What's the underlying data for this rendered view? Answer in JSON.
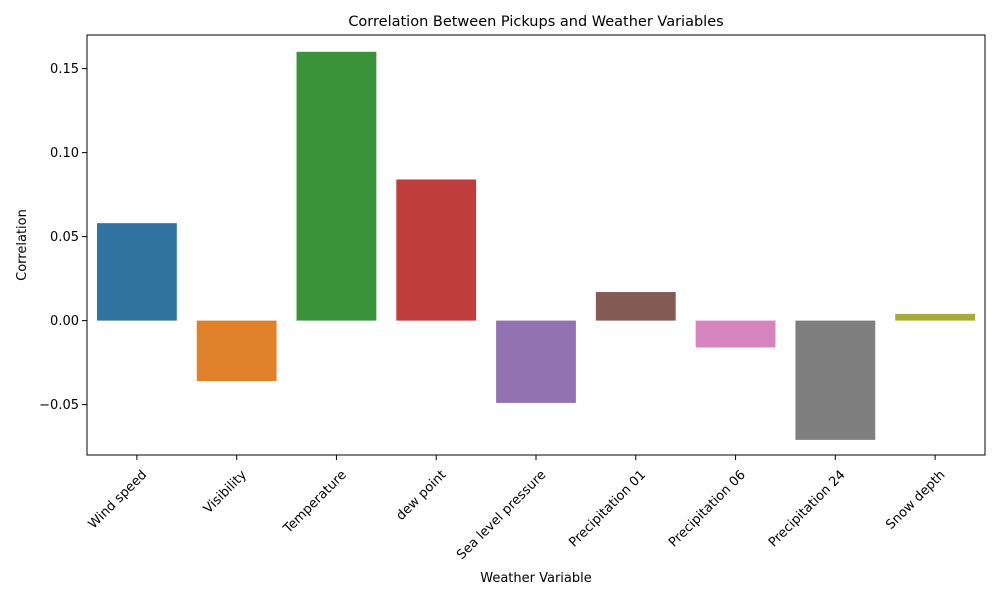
{
  "chart_data": {
    "type": "bar",
    "title": "Correlation Between Pickups and Weather Variables",
    "xlabel": "Weather Variable",
    "ylabel": "Correlation",
    "categories": [
      "Wind speed",
      "Visibility",
      "Temperature",
      "dew point",
      "Sea level pressure",
      "Precipitation 01",
      "Precipitation 06",
      "Precipitation 24",
      "Snow depth"
    ],
    "values": [
      0.058,
      -0.036,
      0.16,
      0.084,
      -0.049,
      0.017,
      -0.016,
      -0.071,
      0.004
    ],
    "colors": [
      "#3274a1",
      "#e1812c",
      "#3a923a",
      "#c03d3e",
      "#9372b2",
      "#845b53",
      "#d684bd",
      "#7f7f7f",
      "#a9aa35"
    ],
    "ylim": [
      -0.08,
      0.17
    ],
    "yticks": [
      -0.05,
      0.0,
      0.05,
      0.1,
      0.15
    ],
    "ytick_labels": [
      "−0.05",
      "0.00",
      "0.05",
      "0.10",
      "0.15"
    ],
    "grid": false,
    "legend": "none"
  }
}
